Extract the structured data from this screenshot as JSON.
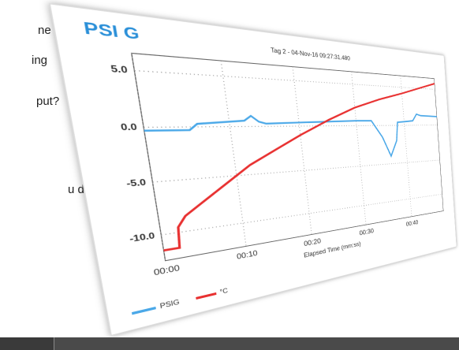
{
  "page_text": [
    "ne",
    "ing",
    "put?",
    "u decide"
  ],
  "chart_data": {
    "type": "line",
    "title": "PSI G",
    "subtitle": "Tag 2 - 04-Nov-16 09:27:31.480",
    "x_label": "Elapsed Time (mm:ss)",
    "xlim": [
      0,
      48
    ],
    "ylim": [
      -12.5,
      6.5
    ],
    "xticks": [
      {
        "value": 0,
        "label": "00:00"
      },
      {
        "value": 10,
        "label": "00:10"
      },
      {
        "value": 20,
        "label": "00:20"
      },
      {
        "value": 30,
        "label": "00:30"
      },
      {
        "value": 40,
        "label": "00:40"
      }
    ],
    "yticks": [
      {
        "value": 5,
        "label": "5.0"
      },
      {
        "value": 0,
        "label": "0.0"
      },
      {
        "value": -5,
        "label": "-5.0"
      },
      {
        "value": -10,
        "label": "-10.0"
      }
    ],
    "grid": true,
    "legend": "lower left",
    "series": [
      {
        "name": "PSIG",
        "color": "#4aa8e8",
        "x": [
          0,
          5,
          6,
          10,
          12,
          13,
          14,
          15,
          20,
          30,
          33,
          35,
          36.5,
          38,
          38.5,
          42,
          43,
          44,
          48
        ],
        "values": [
          -0.3,
          -0.3,
          0.3,
          0.5,
          0.6,
          1.1,
          0.5,
          0.3,
          0.4,
          0.6,
          0.6,
          -1.5,
          -4,
          -2,
          0.4,
          0.6,
          1.5,
          1.3,
          1.2
        ]
      },
      {
        "name": "°C",
        "color": "#e83030",
        "x": [
          0,
          1.8,
          2,
          3,
          5,
          8,
          12,
          16,
          20,
          25,
          30,
          35,
          40,
          45,
          48
        ],
        "values": [
          -11.5,
          -11.5,
          -9.5,
          -8.5,
          -7.5,
          -6,
          -4,
          -2.5,
          -1,
          0.7,
          2.2,
          3.3,
          4.2,
          5.2,
          5.8
        ]
      }
    ]
  }
}
